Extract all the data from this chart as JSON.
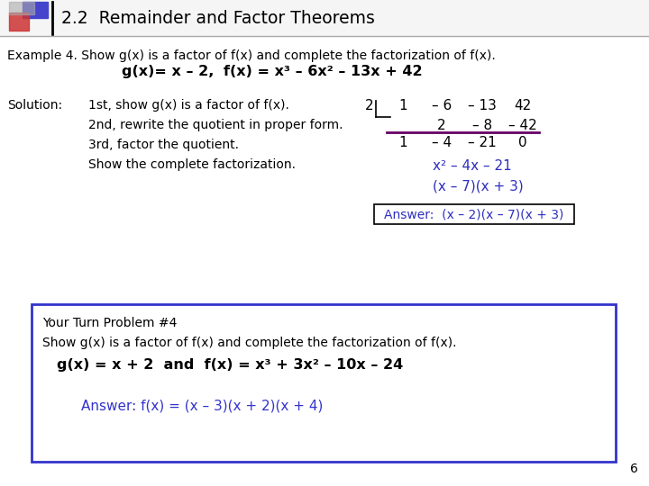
{
  "title": "2.2  Remainder and Factor Theorems",
  "bg_color": "#ffffff",
  "text_color": "#000000",
  "blue_color": "#2E2EBF",
  "answer_color": "#3333cc",
  "page_number": "6",
  "example_line": "Example 4. Show g(x) is a factor of f(x) and complete the factorization of f(x).",
  "given_gx": "g(x)= x – 2,",
  "given_fx": "f(x) = x³ – 6x² – 13x + 42",
  "solution_label": "Solution:",
  "step1": "1st, show g(x) is a factor of f(x).",
  "step2": "2nd, rewrite the quotient in proper form.",
  "step3": "3rd, factor the quotient.",
  "step4": "Show the complete factorization.",
  "synthetic_divisor": "2",
  "syn_r1": [
    "1",
    "– 6",
    "– 13",
    "42"
  ],
  "syn_r2": [
    "",
    "2",
    "– 8",
    "– 42"
  ],
  "syn_r3": [
    "1",
    "– 4",
    "– 21",
    "0"
  ],
  "quotient_line1": "x² – 4x – 21",
  "quotient_line2": "(x – 7)(x + 3)",
  "answer_box": "Answer:  (x – 2)(x – 7)(x + 3)",
  "ytp_title": "Your Turn Problem #4",
  "ytp_line1": "Show g(x) is a factor of f(x) and complete the factorization of f(x).",
  "ytp_gx": "g(x) = x + 2  and  f(x) = x³ + 3x² – 10x – 24",
  "ytp_answer": "Answer: f(x) = (x – 3)(x + 2)(x + 4)"
}
